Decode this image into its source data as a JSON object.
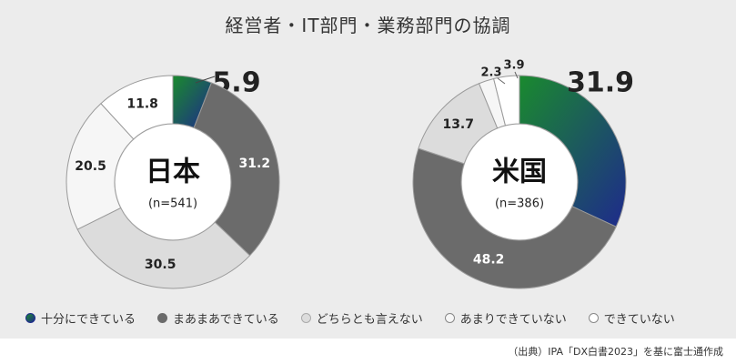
{
  "title": "経営者・IT部門・業務部門の協調",
  "colors": {
    "green": "#1a8a2e",
    "navy": "#1e2a8c",
    "dark_gray": "#6b6b6b",
    "light_gray": "#dcdcdc",
    "lighter": "#f6f6f6",
    "white": "#ffffff",
    "background": "#ececec"
  },
  "chart_data": [
    {
      "type": "donut",
      "center_label": "日本",
      "center_sub": "(n=541)",
      "categories": [
        "十分にできている",
        "まあまあできている",
        "どちらとも言えない",
        "あまりできていない",
        "できていない"
      ],
      "values": [
        5.9,
        31.2,
        30.5,
        20.5,
        11.8
      ],
      "value_labels": [
        "5.9",
        "31.2",
        "30.5",
        "20.5",
        "11.8"
      ]
    },
    {
      "type": "donut",
      "center_label": "米国",
      "center_sub": "(n=386)",
      "categories": [
        "十分にできている",
        "まあまあできている",
        "どちらとも言えない",
        "あまりできていない",
        "できていない"
      ],
      "values": [
        31.9,
        48.2,
        13.7,
        2.3,
        3.9
      ],
      "value_labels": [
        "31.9",
        "48.2",
        "13.7",
        "2.3",
        "3.9"
      ]
    }
  ],
  "legend": {
    "items": [
      "十分にできている",
      "まあまあできている",
      "どちらとも言えない",
      "あまりできていない",
      "できていない"
    ]
  },
  "source": "（出典）IPA「DX白書2023」を基に富士通作成"
}
